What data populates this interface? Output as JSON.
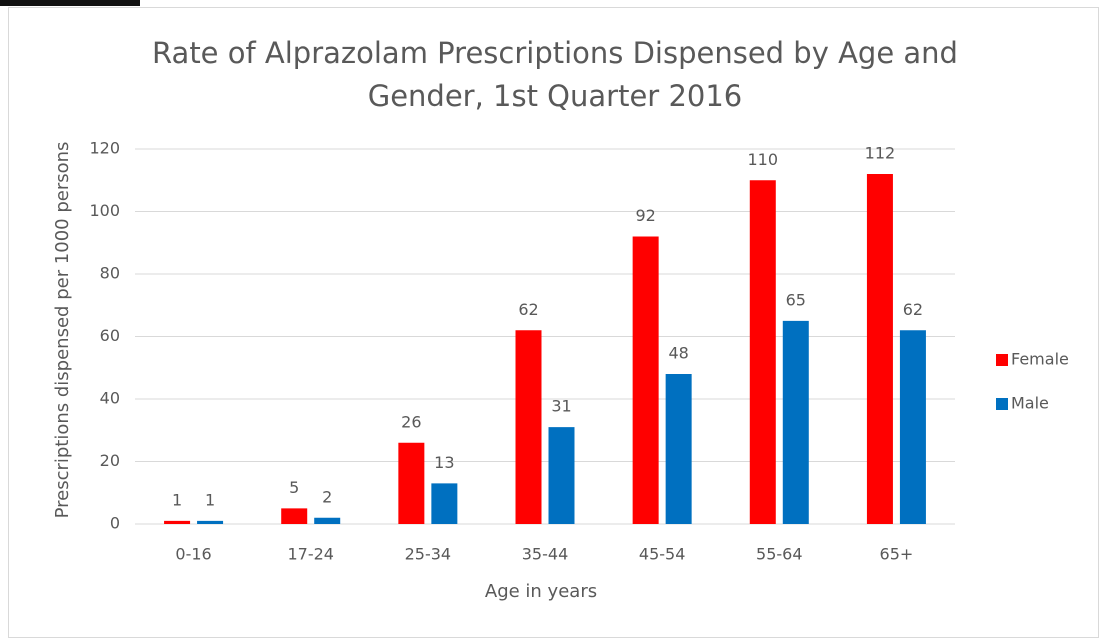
{
  "chart_data": {
    "type": "bar",
    "title": "Rate of Alprazolam Prescriptions Dispensed by Age and Gender, 1st Quarter 2016",
    "xlabel": "Age in years",
    "ylabel": "Prescriptions dispensed per 1000 persons",
    "categories": [
      "0-16",
      "17-24",
      "25-34",
      "35-44",
      "45-54",
      "55-64",
      "65+"
    ],
    "series": [
      {
        "name": "Female",
        "color": "#ff0000",
        "values": [
          1,
          5,
          26,
          62,
          92,
          110,
          112
        ]
      },
      {
        "name": "Male",
        "color": "#0070c0",
        "values": [
          1,
          2,
          13,
          31,
          48,
          65,
          62
        ]
      }
    ],
    "ylim": [
      0,
      120
    ],
    "yticks": [
      0,
      20,
      40,
      60,
      80,
      100,
      120
    ],
    "grid": true,
    "legend": "right"
  }
}
